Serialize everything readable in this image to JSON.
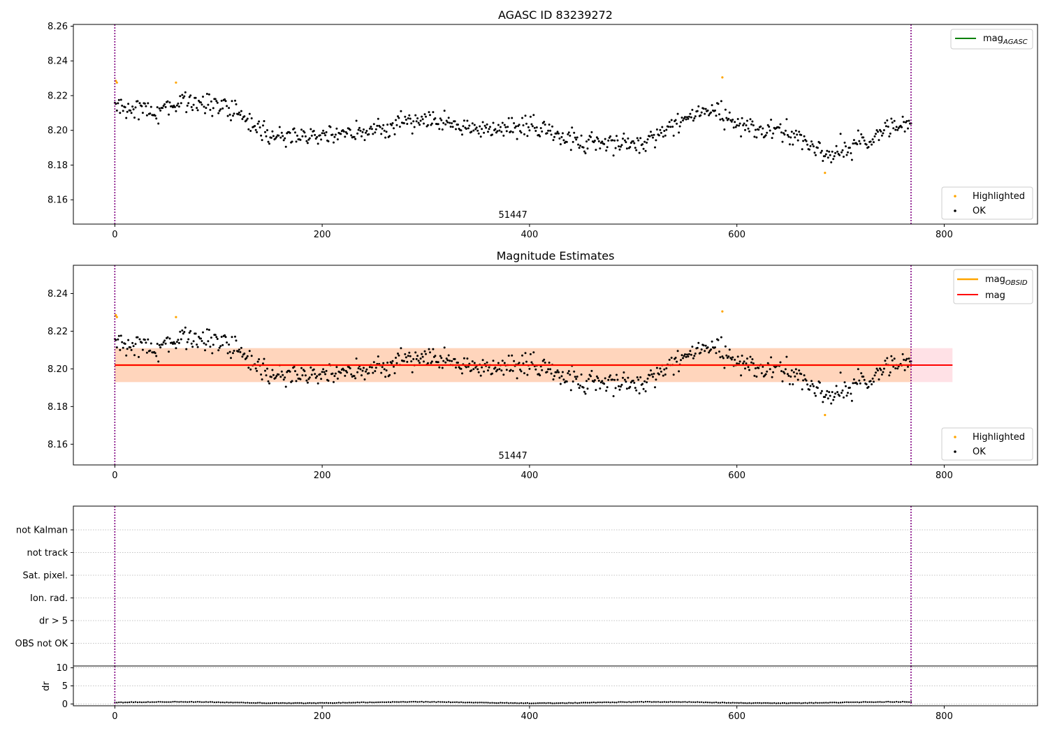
{
  "chart_data": [
    {
      "type": "scatter",
      "title": "AGASC ID 83239272",
      "xlabel": "",
      "ylabel": "",
      "xlim": [
        -40,
        890
      ],
      "ylim": [
        8.146,
        8.261
      ],
      "xticks": [
        0,
        200,
        400,
        600,
        800
      ],
      "yticks": [
        8.16,
        8.18,
        8.2,
        8.22,
        8.24,
        8.26
      ],
      "ytick_labels": [
        "8.16",
        "8.18",
        "8.20",
        "8.22",
        "8.24",
        "8.26"
      ],
      "vlines": [
        0,
        768
      ],
      "obsid_label": {
        "text": "51447",
        "x": 384
      },
      "series": [
        {
          "name": "Highlighted",
          "color": "#ffa500",
          "points": [
            [
              1,
              8.2285
            ],
            [
              2,
              8.2275
            ],
            [
              59,
              8.2275
            ],
            [
              586,
              8.2305
            ],
            [
              685,
              8.1755
            ]
          ]
        },
        {
          "name": "OK",
          "color": "#000000"
        }
      ],
      "legend_lines": [
        {
          "name": "mag",
          "sub": "AGASC",
          "color": "#008000"
        }
      ],
      "legend_location": "top-right",
      "legend_points_location": "bottom-right"
    },
    {
      "type": "scatter",
      "title": "Magnitude Estimates",
      "xlabel": "",
      "ylabel": "",
      "xlim": [
        -40,
        890
      ],
      "ylim": [
        8.149,
        8.255
      ],
      "xticks": [
        0,
        200,
        400,
        600,
        800
      ],
      "yticks": [
        8.16,
        8.18,
        8.2,
        8.22,
        8.24
      ],
      "ytick_labels": [
        "8.16",
        "8.18",
        "8.20",
        "8.22",
        "8.24"
      ],
      "vlines": [
        0,
        768
      ],
      "obsid_label": {
        "text": "51447",
        "x": 384
      },
      "mean_mag": 8.202,
      "band_obsid": [
        8.193,
        8.211
      ],
      "band_mag": [
        8.193,
        8.211
      ],
      "band_extent": [
        0,
        808
      ],
      "series": [
        {
          "name": "Highlighted",
          "color": "#ffa500",
          "points": [
            [
              1,
              8.2285
            ],
            [
              2,
              8.2275
            ],
            [
              59,
              8.2275
            ],
            [
              586,
              8.2305
            ],
            [
              685,
              8.1755
            ]
          ]
        },
        {
          "name": "OK",
          "color": "#000000"
        }
      ],
      "legend_lines": [
        {
          "name": "mag",
          "sub": "OBSID",
          "color": "#ffa500"
        },
        {
          "name": "mag",
          "sub": "",
          "color": "#ff0000"
        }
      ],
      "legend_location": "top-right",
      "legend_points_location": "bottom-right"
    },
    {
      "type": "scatter",
      "title": "",
      "xlabel": "",
      "ylabel": "",
      "xlim": [
        -40,
        890
      ],
      "flags": [
        "not Kalman",
        "not track",
        "Sat. pixel.",
        "Ion. rad.",
        "dr > 5",
        "OBS not OK"
      ],
      "grid": true,
      "vlines": [
        0,
        768
      ]
    },
    {
      "type": "line",
      "title": "",
      "xlabel": "",
      "ylabel": "dr",
      "xlim": [
        -40,
        890
      ],
      "ylim": [
        -0.5,
        10.5
      ],
      "xticks": [
        0,
        200,
        400,
        600,
        800
      ],
      "yticks": [
        0,
        5,
        10
      ],
      "ytick_labels": [
        "0",
        "5",
        "10"
      ],
      "grid": true,
      "vlines": [
        0,
        768
      ],
      "dr_range": [
        0.1,
        1.0
      ]
    }
  ],
  "colors": {
    "vline": "#800080",
    "grid": "#b0b0b0",
    "band_obsid": "#ffd2b4",
    "band_mag": "#ffc8d2"
  }
}
